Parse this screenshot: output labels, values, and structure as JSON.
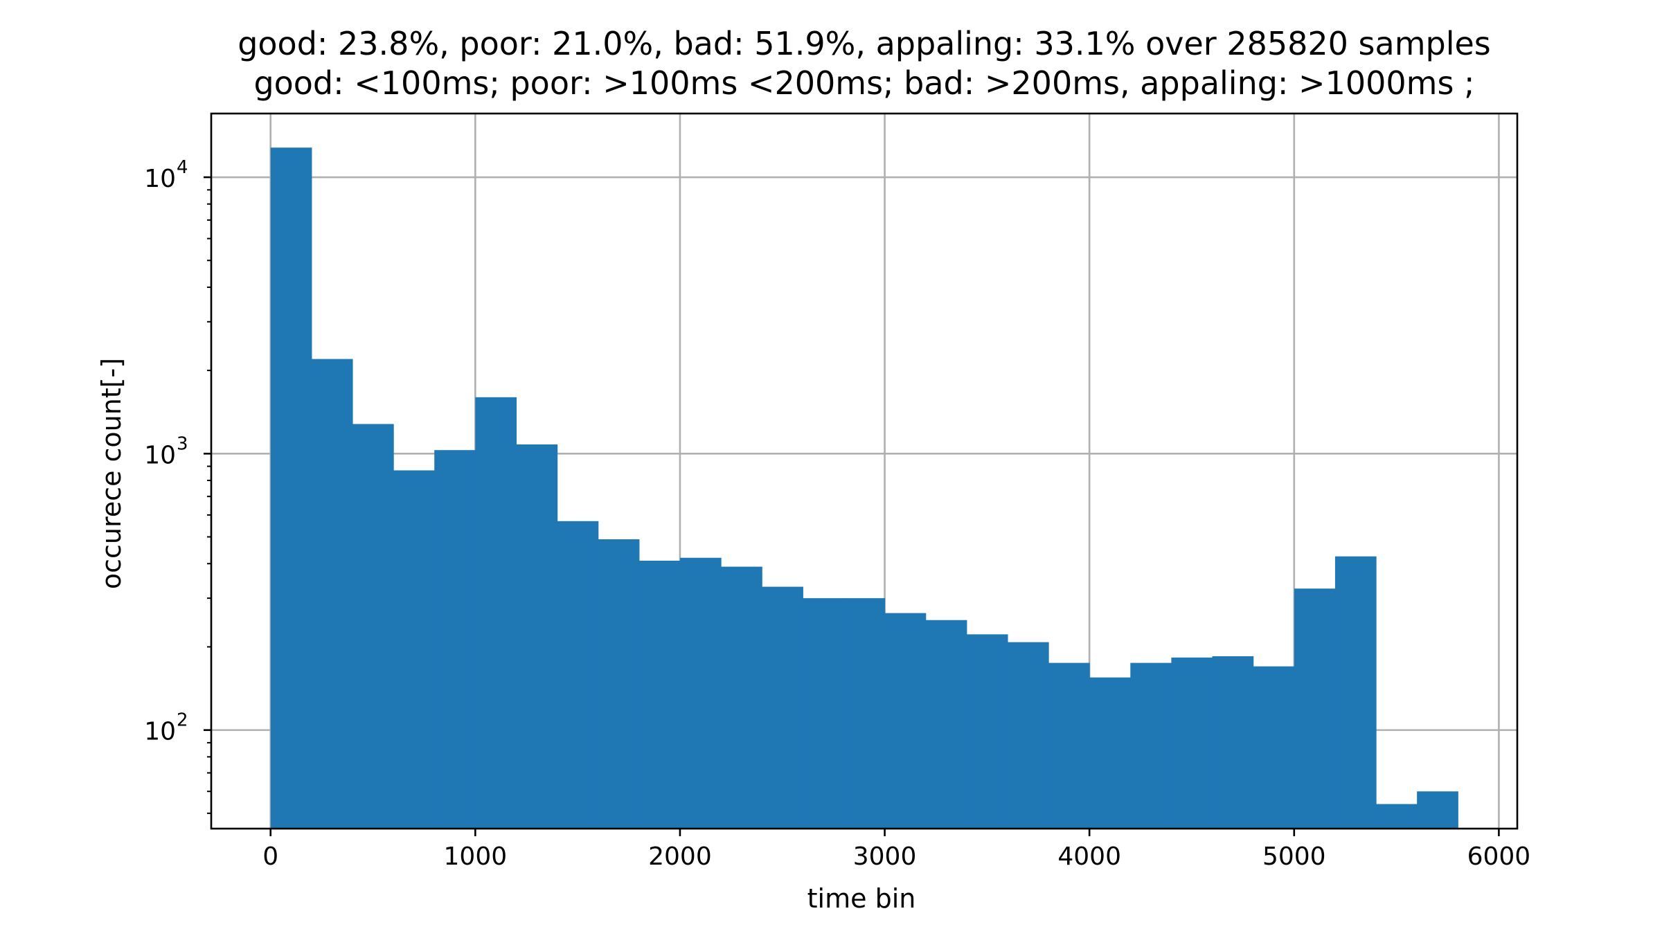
{
  "chart_data": {
    "type": "bar",
    "title": "good: 23.8%, poor: 21.0%, bad: 51.9%, appaling: 33.1% over 285820 samples",
    "subtitle": "good: <100ms; poor: >100ms <200ms; bad: >200ms, appaling: >1000ms ;",
    "xlabel": "time bin",
    "ylabel": "occurece count[-]",
    "y_scale": "log",
    "xlim": [
      -290,
      6090
    ],
    "ylim": [
      44,
      17000
    ],
    "grid": true,
    "bar_color": "#1f77b4",
    "bin_edges": [
      0,
      200,
      400,
      600,
      800,
      1000,
      1200,
      1400,
      1600,
      1800,
      2000,
      2200,
      2400,
      2600,
      2800,
      3000,
      3200,
      3400,
      3600,
      3800,
      4000,
      4200,
      4400,
      4600,
      4800,
      5000,
      5200,
      5400,
      5600,
      5800
    ],
    "values": [
      12800,
      2200,
      1280,
      870,
      1030,
      1600,
      1080,
      570,
      490,
      410,
      420,
      390,
      330,
      300,
      300,
      265,
      250,
      222,
      208,
      175,
      155,
      175,
      183,
      185,
      170,
      325,
      425,
      54,
      60
    ],
    "x_ticks": [
      {
        "value": 0,
        "label": "0"
      },
      {
        "value": 1000,
        "label": "1000"
      },
      {
        "value": 2000,
        "label": "2000"
      },
      {
        "value": 3000,
        "label": "3000"
      },
      {
        "value": 4000,
        "label": "4000"
      },
      {
        "value": 5000,
        "label": "5000"
      },
      {
        "value": 6000,
        "label": "6000"
      }
    ],
    "y_ticks": [
      {
        "value": 100,
        "base": "10",
        "exp": "2"
      },
      {
        "value": 1000,
        "base": "10",
        "exp": "3"
      },
      {
        "value": 10000,
        "base": "10",
        "exp": "4"
      }
    ]
  }
}
